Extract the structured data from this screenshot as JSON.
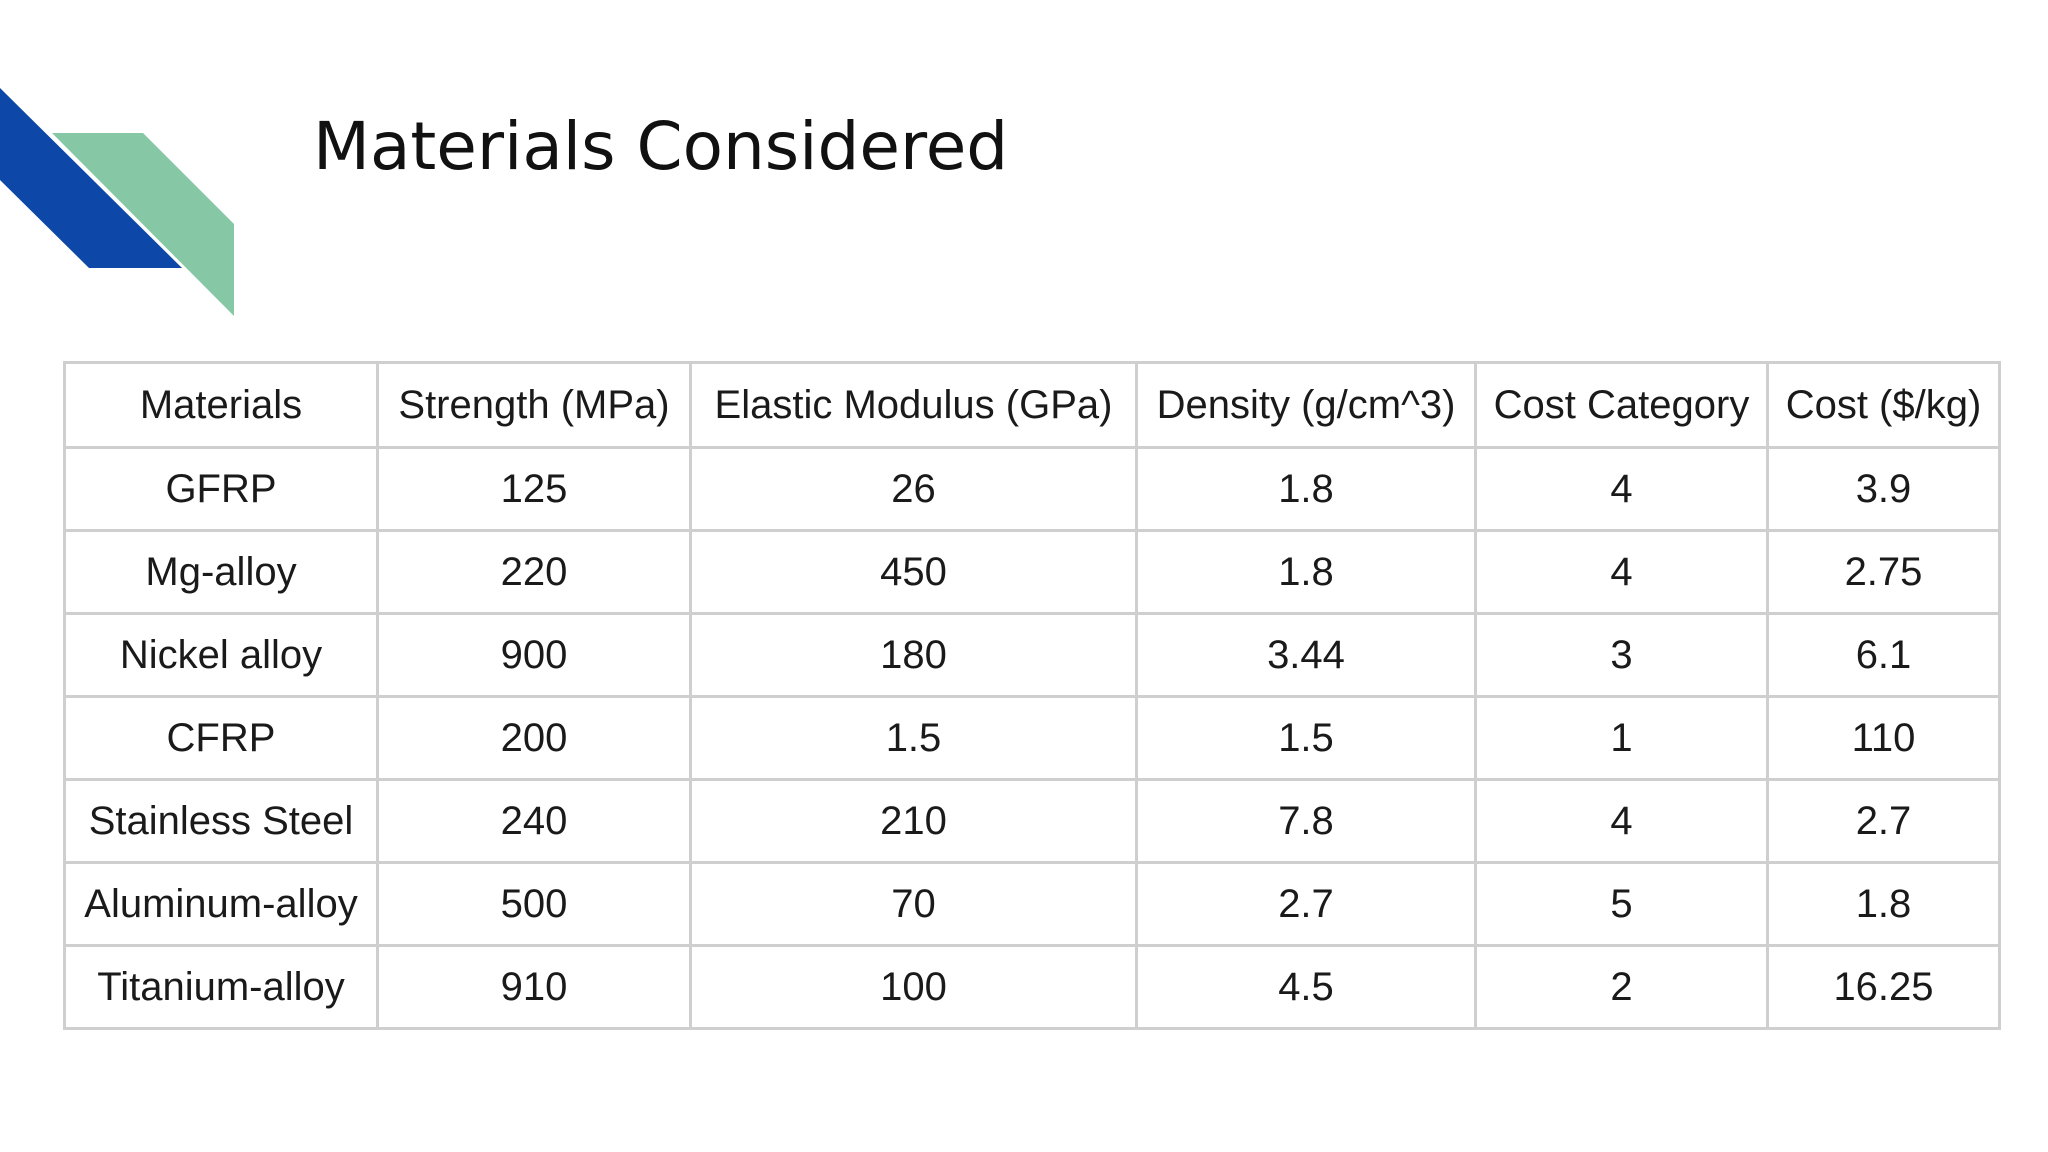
{
  "slide": {
    "title": "Materials Considered",
    "accent_colors": {
      "blue": "#0d47a8",
      "green": "#86c7a6"
    }
  },
  "table": {
    "headers": [
      "Materials",
      "Strength (MPa)",
      "Elastic Modulus (GPa)",
      "Density (g/cm^3)",
      "Cost Category",
      "Cost ($/kg)"
    ],
    "rows": [
      [
        "GFRP",
        "125",
        "26",
        "1.8",
        "4",
        "3.9"
      ],
      [
        "Mg-alloy",
        "220",
        "450",
        "1.8",
        "4",
        "2.75"
      ],
      [
        "Nickel alloy",
        "900",
        "180",
        "3.44",
        "3",
        "6.1"
      ],
      [
        "CFRP",
        "200",
        "1.5",
        "1.5",
        "1",
        "110"
      ],
      [
        "Stainless Steel",
        "240",
        "210",
        "7.8",
        "4",
        "2.7"
      ],
      [
        "Aluminum-alloy",
        "500",
        "70",
        "2.7",
        "5",
        "1.8"
      ],
      [
        "Titanium-alloy",
        "910",
        "100",
        "4.5",
        "2",
        "16.25"
      ]
    ]
  }
}
